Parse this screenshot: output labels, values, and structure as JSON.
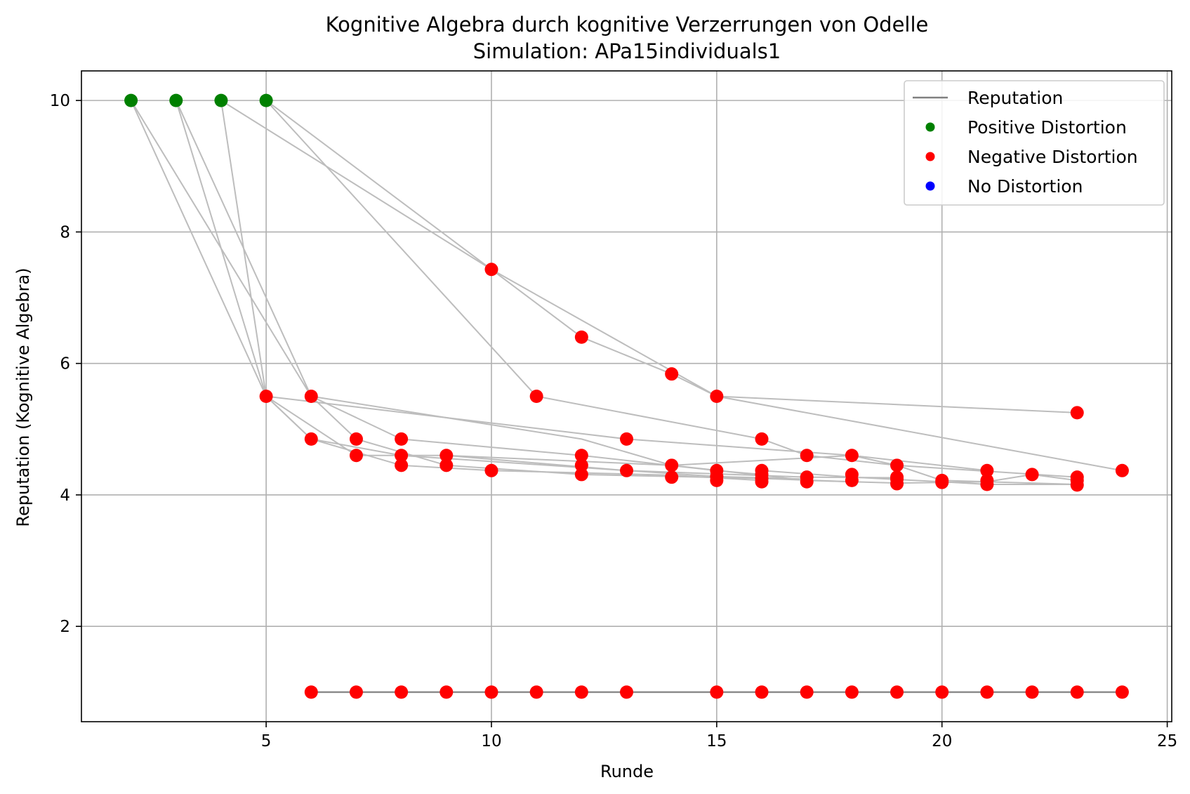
{
  "chart_data": {
    "type": "scatter",
    "title": "Kognitive Algebra durch kognitive Verzerrungen von Odelle",
    "subtitle": "Simulation: APa15individuals1",
    "xlabel": "Runde",
    "ylabel": "Reputation (Kognitive Algebra)",
    "xlim": [
      0.9,
      25.1
    ],
    "ylim": [
      0.55,
      10.45
    ],
    "xticks": [
      5,
      10,
      15,
      20,
      25
    ],
    "yticks": [
      2,
      4,
      6,
      8,
      10
    ],
    "grid": true,
    "legend_position": "top-right",
    "legend": [
      {
        "label": "Reputation",
        "kind": "line",
        "color": "#808080"
      },
      {
        "label": "Positive Distortion",
        "kind": "marker",
        "color": "#008000"
      },
      {
        "label": "Negative Distortion",
        "kind": "marker",
        "color": "#ff0000"
      },
      {
        "label": "No Distortion",
        "kind": "marker",
        "color": "#0000ff"
      }
    ],
    "connections": [
      {
        "x": [
          2,
          5,
          6,
          8,
          10,
          14,
          16
        ],
        "y": [
          10,
          5.5,
          4.85,
          4.45,
          4.37,
          4.3,
          4.22
        ]
      },
      {
        "x": [
          2,
          6,
          8,
          12,
          15,
          16
        ],
        "y": [
          10,
          5.5,
          4.85,
          4.6,
          4.37,
          4.31
        ]
      },
      {
        "x": [
          3,
          5,
          7,
          9,
          13,
          15,
          17
        ],
        "y": [
          10,
          5.5,
          4.6,
          4.6,
          4.37,
          4.28,
          4.24
        ]
      },
      {
        "x": [
          3,
          6,
          7,
          9,
          12,
          16,
          18
        ],
        "y": [
          10,
          5.5,
          4.85,
          4.45,
          4.31,
          4.25,
          4.2
        ]
      },
      {
        "x": [
          4,
          5,
          6,
          8,
          13,
          17,
          19
        ],
        "y": [
          10,
          5.5,
          4.85,
          4.6,
          4.37,
          4.27,
          4.26
        ]
      },
      {
        "x": [
          4,
          10,
          12,
          14,
          15,
          24
        ],
        "y": [
          10,
          7.43,
          6.4,
          5.84,
          5.5,
          4.37
        ]
      },
      {
        "x": [
          5,
          11,
          16,
          17,
          19,
          23
        ],
        "y": [
          10,
          5.5,
          4.85,
          4.6,
          4.45,
          4.27
        ]
      },
      {
        "x": [
          5,
          10,
          15,
          23
        ],
        "y": [
          10,
          7.43,
          5.5,
          5.25
        ]
      },
      {
        "x": [
          6,
          12,
          14,
          18,
          21
        ],
        "y": [
          5.5,
          4.85,
          4.45,
          4.6,
          4.37
        ]
      },
      {
        "x": [
          5,
          13,
          18,
          19,
          20,
          21,
          23
        ],
        "y": [
          5.5,
          4.85,
          4.6,
          4.45,
          4.22,
          4.2,
          4.16
        ]
      },
      {
        "x": [
          9,
          14,
          17,
          19,
          21,
          22,
          23
        ],
        "y": [
          4.6,
          4.45,
          4.22,
          4.18,
          4.2,
          4.31,
          4.22
        ]
      },
      {
        "x": [
          16,
          18,
          20,
          21,
          23
        ],
        "y": [
          4.37,
          4.27,
          4.2,
          4.16,
          4.16
        ]
      }
    ],
    "series": [
      {
        "name": "Positive Distortion",
        "color": "#008000",
        "x": [
          2,
          3,
          4,
          5
        ],
        "y": [
          10,
          10,
          10,
          10
        ]
      },
      {
        "name": "Negative Distortion",
        "color": "#ff0000",
        "x": [
          5,
          6,
          6,
          7,
          7,
          8,
          8,
          8,
          9,
          9,
          10,
          10,
          11,
          12,
          12,
          12,
          12,
          13,
          13,
          14,
          14,
          14,
          15,
          15,
          15,
          15,
          16,
          16,
          16,
          16,
          16,
          17,
          17,
          17,
          18,
          18,
          18,
          19,
          19,
          19,
          19,
          20,
          20,
          21,
          21,
          21,
          22,
          23,
          23,
          23,
          23,
          24,
          6,
          7,
          8,
          9,
          10,
          11,
          12,
          13,
          15,
          16,
          17,
          18,
          19,
          20,
          21,
          22,
          23,
          24
        ],
        "y": [
          5.5,
          5.5,
          4.85,
          4.85,
          4.6,
          4.85,
          4.6,
          4.45,
          4.6,
          4.45,
          7.43,
          4.37,
          5.5,
          6.4,
          4.6,
          4.45,
          4.31,
          4.85,
          4.37,
          5.84,
          4.45,
          4.27,
          5.5,
          4.37,
          4.28,
          4.22,
          4.85,
          4.37,
          4.31,
          4.25,
          4.2,
          4.6,
          4.27,
          4.2,
          4.6,
          4.31,
          4.22,
          4.45,
          4.27,
          4.24,
          4.17,
          4.22,
          4.19,
          4.37,
          4.22,
          4.16,
          4.31,
          5.25,
          4.27,
          4.22,
          4.15,
          4.37,
          1,
          1,
          1,
          1,
          1,
          1,
          1,
          1,
          1,
          1,
          1,
          1,
          1,
          1,
          1,
          1,
          1,
          1
        ]
      },
      {
        "name": "No Distortion",
        "color": "#0000ff",
        "x": [],
        "y": []
      }
    ],
    "baseline": {
      "x": [
        6,
        24
      ],
      "y": [
        1,
        1
      ]
    }
  }
}
